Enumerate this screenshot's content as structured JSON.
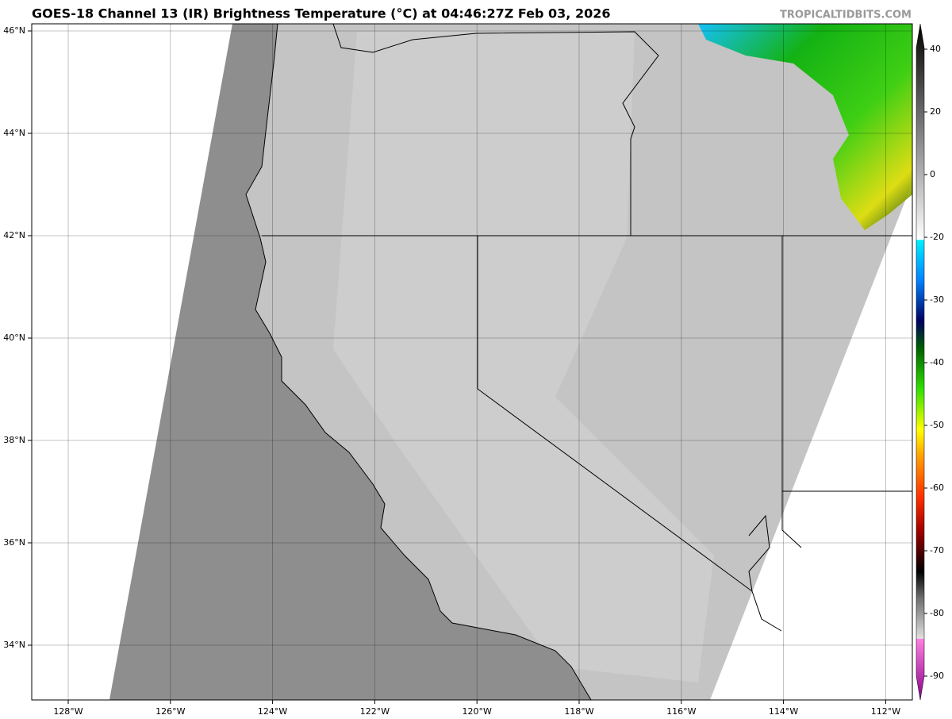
{
  "header": {
    "title": "GOES-18 Channel 13 (IR) Brightness Temperature (°C) at 04:46:27Z Feb 03, 2026",
    "watermark": "TROPICALTIDBITS.COM"
  },
  "map": {
    "lon_ticks": [
      {
        "value": -128,
        "label": "128°W"
      },
      {
        "value": -126,
        "label": "126°W"
      },
      {
        "value": -124,
        "label": "124°W"
      },
      {
        "value": -122,
        "label": "122°W"
      },
      {
        "value": -120,
        "label": "120°W"
      },
      {
        "value": -118,
        "label": "118°W"
      },
      {
        "value": -116,
        "label": "116°W"
      },
      {
        "value": -114,
        "label": "114°W"
      },
      {
        "value": -112,
        "label": "112°W"
      }
    ],
    "lat_ticks": [
      {
        "value": 46,
        "label": "46°N"
      },
      {
        "value": 44,
        "label": "44°N"
      },
      {
        "value": 42,
        "label": "42°N"
      },
      {
        "value": 40,
        "label": "40°N"
      },
      {
        "value": 38,
        "label": "38°N"
      },
      {
        "value": 36,
        "label": "36°N"
      },
      {
        "value": 34,
        "label": "34°N"
      }
    ]
  },
  "colorbar": {
    "ticks": [
      40,
      20,
      0,
      -20,
      -30,
      -40,
      -50,
      -60,
      -70,
      -80,
      -90
    ]
  }
}
